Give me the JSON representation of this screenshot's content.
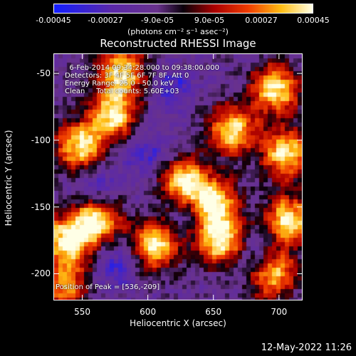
{
  "chart_data": {
    "type": "heatmap",
    "title": "Reconstructed RHESSI Image",
    "xlabel": "Heliocentric X (arcsec)",
    "ylabel": "Heliocentric Y (arcsec)",
    "xlim": [
      528,
      718
    ],
    "ylim": [
      -220,
      -35
    ],
    "x_ticks": [
      550,
      600,
      650,
      700
    ],
    "y_ticks": [
      -50,
      -100,
      -150,
      -200
    ],
    "colorbar": {
      "range": [
        -0.00045,
        0.00045
      ],
      "ticks": [
        "-0.00045",
        "-0.00027",
        "-9.0e-05",
        "9.0e-05",
        "0.00027",
        "0.00045"
      ],
      "units": "(photons cm⁻² s⁻¹ asec⁻²)"
    },
    "info_lines": [
      "  6-Feb-2014 09:34:28.000 to 09:38:00.000",
      "Detectors: 3F 4F 5F 6F 7F 8F, Att 0",
      "Energy Range: 25.0 - 50.0 keV",
      "Clean     Total counts: 5.60E+03"
    ],
    "peak_label": "Position of Peak = [536,-209]",
    "peak_position": [
      536,
      -209
    ],
    "bright_regions": [
      {
        "x": 538,
        "y": -175
      },
      {
        "x": 560,
        "y": -160
      },
      {
        "x": 580,
        "y": -48
      },
      {
        "x": 572,
        "y": -80
      },
      {
        "x": 665,
        "y": -92
      },
      {
        "x": 698,
        "y": -62
      },
      {
        "x": 706,
        "y": -110
      },
      {
        "x": 650,
        "y": -148
      },
      {
        "x": 628,
        "y": -132
      },
      {
        "x": 655,
        "y": -175
      },
      {
        "x": 606,
        "y": -178
      },
      {
        "x": 708,
        "y": -160
      },
      {
        "x": 548,
        "y": -105
      },
      {
        "x": 695,
        "y": -200
      }
    ],
    "dim_regions": [
      {
        "x": 560,
        "y": -135
      },
      {
        "x": 600,
        "y": -110
      },
      {
        "x": 630,
        "y": -155
      },
      {
        "x": 685,
        "y": -188
      },
      {
        "x": 575,
        "y": -195
      },
      {
        "x": 620,
        "y": -60
      }
    ]
  },
  "footer": {
    "timestamp": "12-May-2022 11:26"
  }
}
